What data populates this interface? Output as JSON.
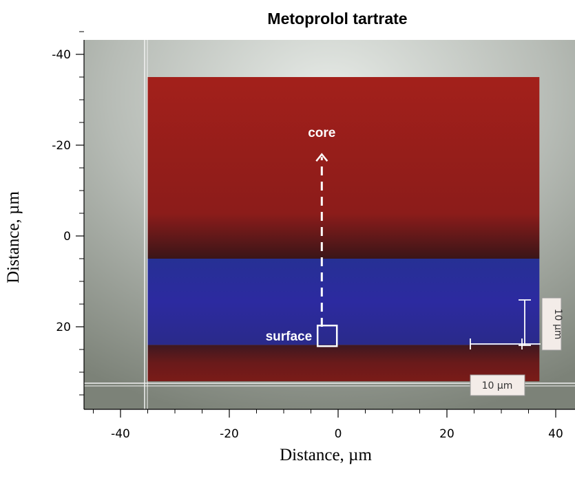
{
  "title": "Metoprolol tartrate",
  "x_axis": {
    "label": "Distance, µm",
    "ticks": [
      {
        "value": -40,
        "text": "-40"
      },
      {
        "value": -20,
        "text": "-20"
      },
      {
        "value": 0,
        "text": "0"
      },
      {
        "value": 20,
        "text": "20"
      },
      {
        "value": 40,
        "text": "40"
      }
    ],
    "range": [
      -46,
      42
    ]
  },
  "y_axis": {
    "label": "Distance, µm",
    "ticks": [
      {
        "value": -40,
        "text": "-40"
      },
      {
        "value": -20,
        "text": "-20"
      },
      {
        "value": 0,
        "text": "0"
      },
      {
        "value": 20,
        "text": "20"
      }
    ],
    "range": [
      -44,
      38
    ],
    "inverted": true
  },
  "image": {
    "regions": [
      {
        "name": "red-region-top",
        "color": "#a0201c",
        "y_from": -35,
        "y_to": 5
      },
      {
        "name": "blue-region",
        "color": "#2a2c9a",
        "y_from": 5,
        "y_to": 24
      },
      {
        "name": "red-region-bottom",
        "color": "#6e1a1a",
        "y_from": 24,
        "y_to": 32
      }
    ],
    "map_x_range": [
      -35,
      37
    ],
    "background_color": "#9aa09a"
  },
  "annotations": {
    "core_label": "core",
    "surface_label": "surface",
    "arrow_from": {
      "x": -3,
      "y": 20
    },
    "arrow_to": {
      "x": -3,
      "y": -18
    },
    "surface_box_center": {
      "x": -2,
      "y": 22
    }
  },
  "scale_bars": {
    "vertical_label": "10 µm",
    "horizontal_label": "10 µm",
    "length_um": 10
  }
}
